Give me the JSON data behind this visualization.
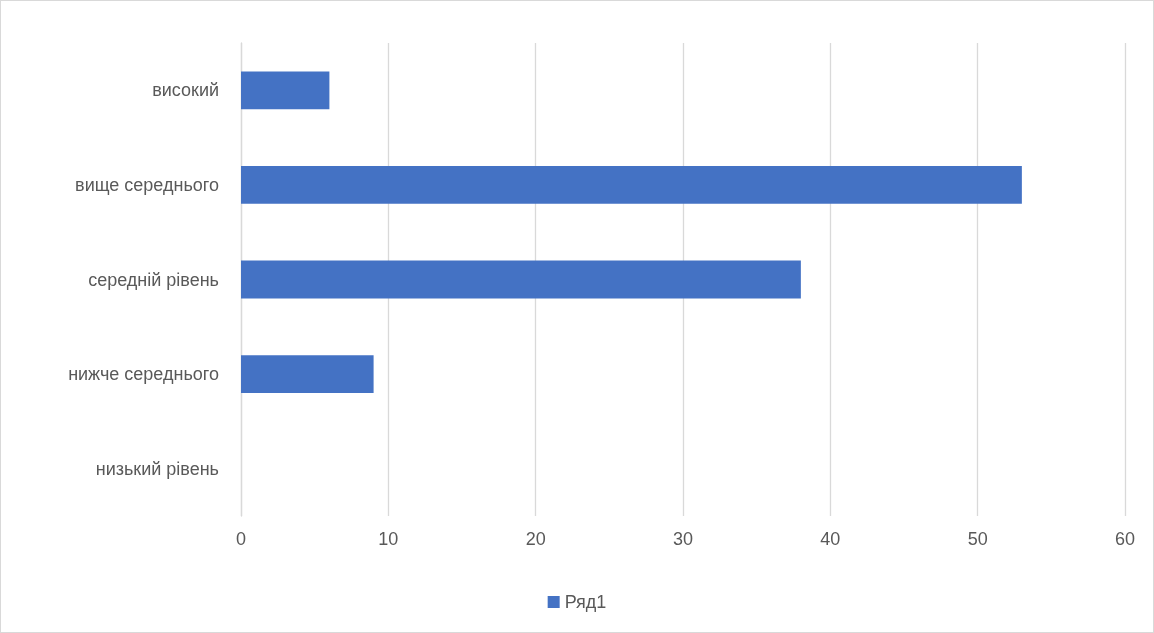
{
  "chart_data": {
    "type": "bar",
    "orientation": "horizontal",
    "categories": [
      "високий",
      "вище середнього",
      "середній рівень",
      "нижче середнього",
      "низький рівень"
    ],
    "series": [
      {
        "name": "Ряд1",
        "color": "#4472c4",
        "values": [
          6,
          53,
          38,
          9,
          0
        ]
      }
    ],
    "xlim": [
      0,
      60
    ],
    "xticks": [
      0,
      10,
      20,
      30,
      40,
      50,
      60
    ],
    "grid": "x",
    "legend": "bottom"
  }
}
